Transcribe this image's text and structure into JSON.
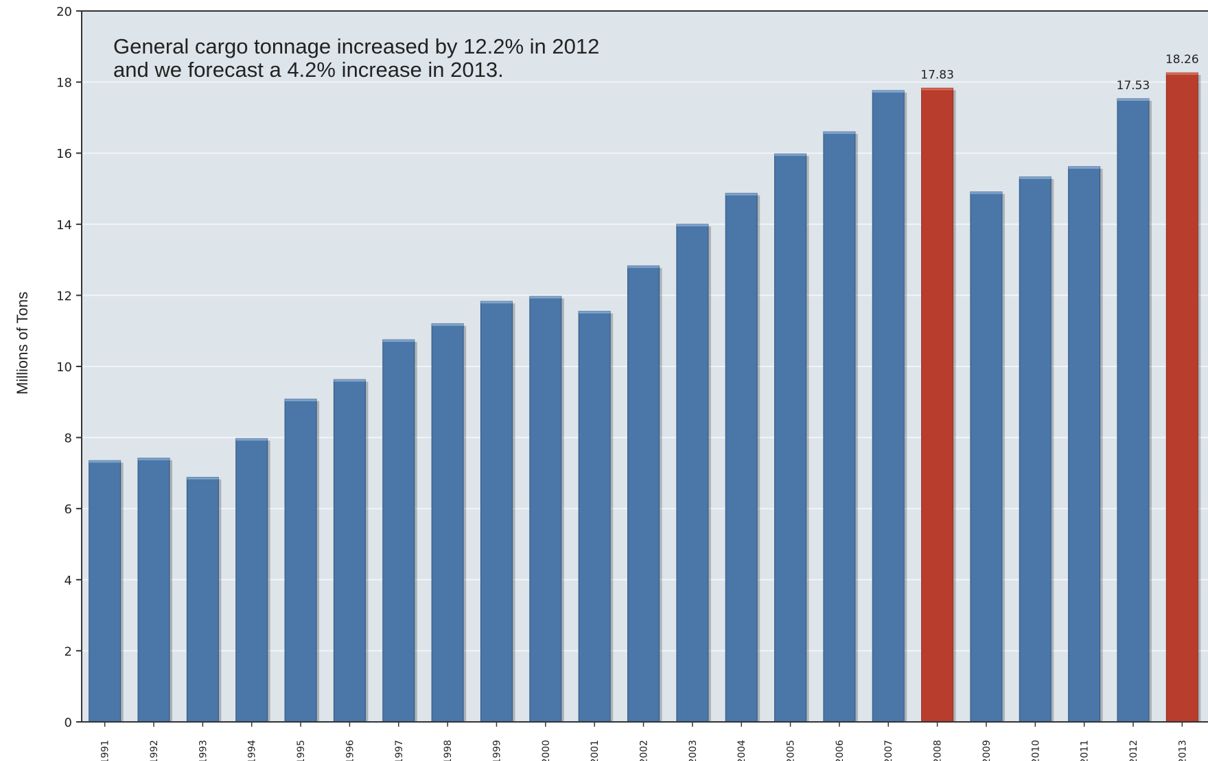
{
  "chart_data": {
    "type": "bar",
    "title": "",
    "xlabel": "",
    "ylabel": "Millions of Tons",
    "ylim": [
      0,
      20
    ],
    "yticks": [
      0,
      2,
      4,
      6,
      8,
      10,
      12,
      14,
      16,
      18,
      20
    ],
    "grid": true,
    "legend": "none",
    "annotation": [
      "General cargo tonnage increased by 12.2% in 2012",
      "and we forecast a 4.2% increase in 2013."
    ],
    "categories": [
      "1991",
      "1992",
      "1993",
      "1994",
      "1995",
      "1996",
      "1997",
      "1998",
      "1999",
      "2000",
      "2001",
      "2002",
      "2003",
      "2004",
      "2005",
      "2006",
      "2007",
      "2008",
      "2009",
      "2010",
      "2011",
      "2012",
      "2013"
    ],
    "values": [
      7.35,
      7.42,
      6.88,
      7.97,
      9.08,
      9.63,
      10.75,
      11.2,
      11.83,
      11.97,
      11.55,
      12.83,
      14.0,
      14.87,
      15.98,
      16.6,
      17.76,
      17.83,
      14.91,
      15.33,
      15.62,
      17.53,
      18.26
    ],
    "highlight": [
      "2008",
      "2013"
    ],
    "data_labels": {
      "2008": "17.83",
      "2012": "17.53",
      "2013": "18.26"
    },
    "colors": {
      "bar": "#4a76a8",
      "highlight": "#b83d2c",
      "plot_background": "#dde4ea",
      "gridline": "#f2f5f8",
      "axis": "#333333"
    }
  }
}
